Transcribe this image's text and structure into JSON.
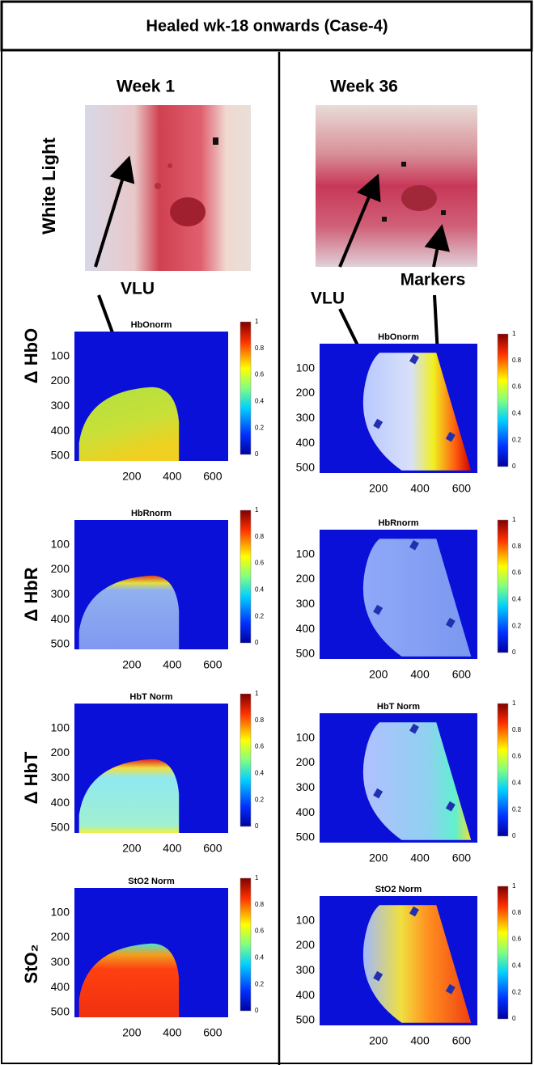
{
  "header": {
    "title": "Healed wk-18 onwards (Case-4)"
  },
  "columns": [
    {
      "title": "Week 1"
    },
    {
      "title": "Week 36"
    }
  ],
  "row_labels": [
    "White Light",
    "Δ HbO",
    "Δ HbR",
    "Δ HbT",
    "StO₂"
  ],
  "annotations": {
    "vlu_left": "VLU",
    "vlu_right": "VLU",
    "markers": "Markers"
  },
  "panels": [
    {
      "title": "HbOnorm",
      "yticks": [
        100,
        200,
        300,
        400,
        500
      ],
      "xticks": [
        200,
        400,
        600
      ],
      "colorbar_ticks": [
        0,
        0.2,
        0.4,
        0.6,
        0.8,
        1
      ]
    },
    {
      "title": "HbRnorm",
      "yticks": [
        100,
        200,
        300,
        400,
        500
      ],
      "xticks": [
        200,
        400,
        600
      ],
      "colorbar_ticks": [
        0,
        0.2,
        0.4,
        0.6,
        0.8,
        1
      ]
    },
    {
      "title": "HbT Norm",
      "yticks": [
        100,
        200,
        300,
        400,
        500
      ],
      "xticks": [
        200,
        400,
        600
      ],
      "colorbar_ticks": [
        0,
        0.2,
        0.4,
        0.6,
        0.8,
        1
      ]
    },
    {
      "title": "StO2 Norm",
      "yticks": [
        100,
        200,
        300,
        400,
        500
      ],
      "xticks": [
        200,
        400,
        600
      ],
      "colorbar_ticks": [
        0,
        0.2,
        0.4,
        0.6,
        0.8,
        1
      ]
    },
    {
      "title": "HbOnorm",
      "yticks": [
        100,
        200,
        300,
        400,
        500
      ],
      "xticks": [
        200,
        400,
        600
      ],
      "colorbar_ticks": [
        0,
        0.2,
        0.4,
        0.6,
        0.8,
        1
      ]
    },
    {
      "title": "HbRnorm",
      "yticks": [
        100,
        200,
        300,
        400,
        500
      ],
      "xticks": [
        200,
        400,
        600
      ],
      "colorbar_ticks": [
        0,
        0.2,
        0.4,
        0.6,
        0.8,
        1
      ]
    },
    {
      "title": "HbT Norm",
      "yticks": [
        100,
        200,
        300,
        400,
        500
      ],
      "xticks": [
        200,
        400,
        600
      ],
      "colorbar_ticks": [
        0,
        0.2,
        0.4,
        0.6,
        0.8,
        1
      ]
    },
    {
      "title": "StO2 Norm",
      "yticks": [
        100,
        200,
        300,
        400,
        500
      ],
      "xticks": [
        200,
        400,
        600
      ],
      "colorbar_ticks": [
        0,
        0.2,
        0.4,
        0.6,
        0.8,
        1
      ]
    }
  ]
}
